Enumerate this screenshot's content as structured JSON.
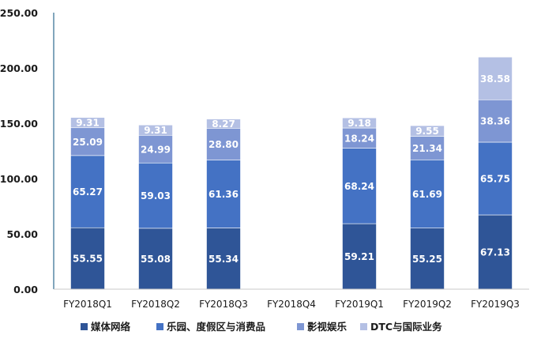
{
  "chart_data": {
    "type": "bar",
    "stacked": true,
    "categories": [
      "FY2018Q1",
      "FY2018Q2",
      "FY2018Q3",
      "FY2018Q4",
      "FY2019Q1",
      "FY2019Q2",
      "FY2019Q3"
    ],
    "series": [
      {
        "name": "媒体网络",
        "color": "#2F5597",
        "values": [
          55.55,
          55.08,
          55.34,
          null,
          59.21,
          55.25,
          67.13
        ]
      },
      {
        "name": "乐园、度假区与消费品",
        "color": "#4472C4",
        "values": [
          65.27,
          59.03,
          61.36,
          null,
          68.24,
          61.69,
          65.75
        ]
      },
      {
        "name": "影视娱乐",
        "color": "#7E96D3",
        "values": [
          25.09,
          24.99,
          28.8,
          null,
          18.24,
          21.34,
          38.36
        ]
      },
      {
        "name": "DTC与国际业务",
        "color": "#B4C0E4",
        "values": [
          9.31,
          9.31,
          8.27,
          null,
          9.18,
          9.55,
          38.58
        ]
      }
    ],
    "y_ticks": [
      "0.00",
      "50.00",
      "100.00",
      "150.00",
      "200.00",
      "250.00"
    ],
    "ylim": [
      0,
      250
    ],
    "value_decimals": 2,
    "grid": false,
    "legend_position": "bottom",
    "label_color": "#ffffff",
    "axis_color": "#2E6B8F"
  }
}
